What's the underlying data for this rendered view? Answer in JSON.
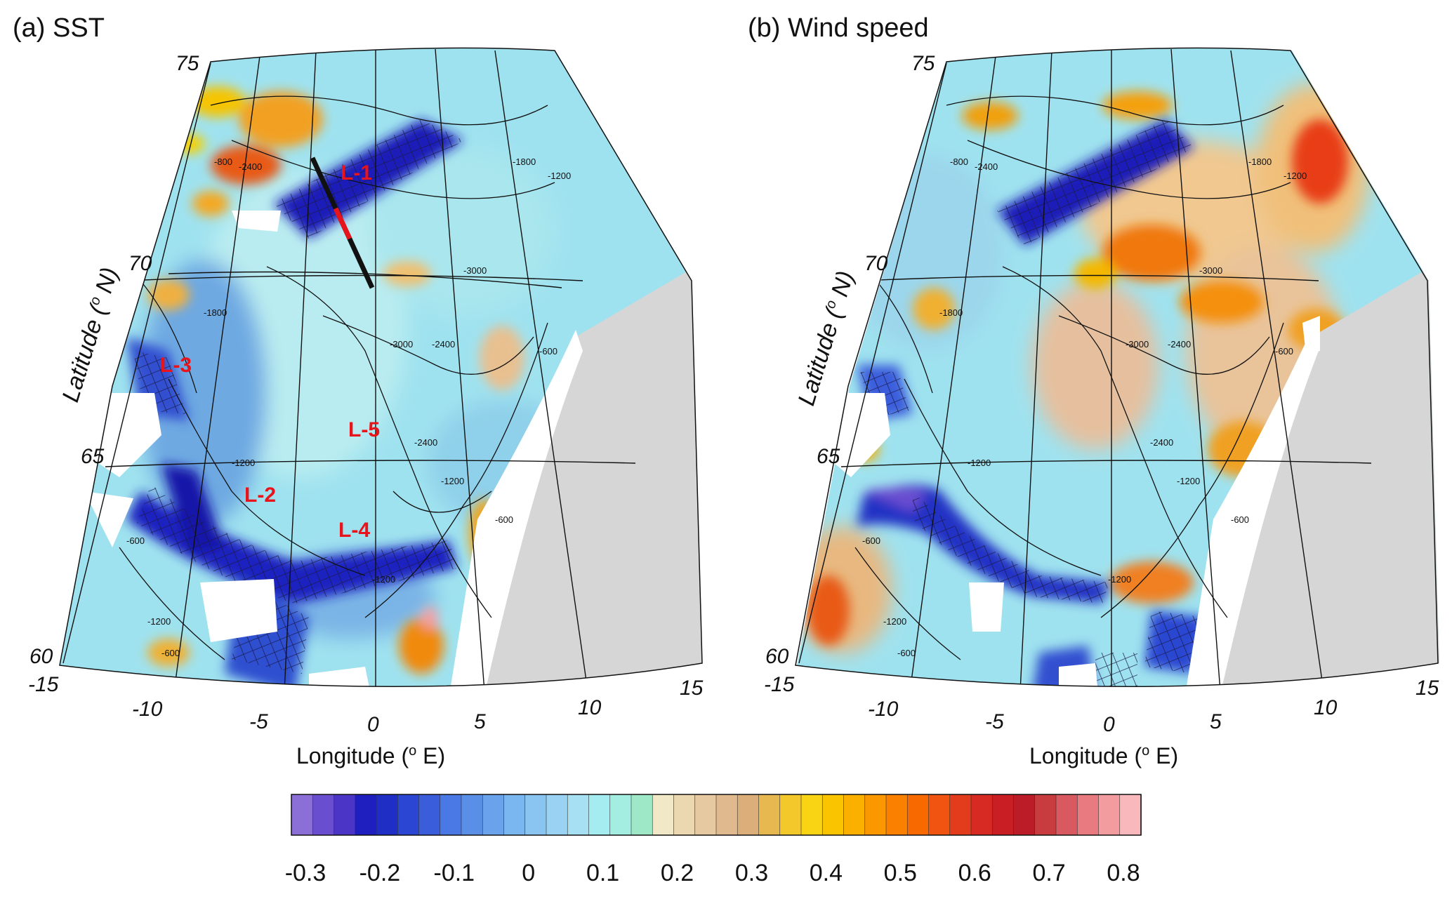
{
  "panels": [
    {
      "title": "(a) SST",
      "lat_ticks": [
        "75",
        "70",
        "65",
        "60"
      ],
      "lon_ticks": [
        "-15",
        "-10",
        "-5",
        "0",
        "5",
        "10",
        "15"
      ],
      "ylabel_main": "Latitude (",
      "ylabel_sup": "o",
      "ylabel_end": " N)",
      "xlabel_main": "Longitude (",
      "xlabel_sup": "o",
      "xlabel_end": " E)",
      "regions": [
        "L-1",
        "L-2",
        "L-3",
        "L-4",
        "L-5"
      ],
      "contour_values": [
        "-800",
        "-2400",
        "-3000",
        "-1800",
        "-1200",
        "-2400",
        "-3000",
        "-1800",
        "-600",
        "-1200",
        "-600",
        "-1200",
        "-2400",
        "-1200",
        "-600",
        "-600",
        "-1200"
      ]
    },
    {
      "title": "(b) Wind speed",
      "lat_ticks": [
        "75",
        "70",
        "65",
        "60"
      ],
      "lon_ticks": [
        "-15",
        "-10",
        "-5",
        "0",
        "5",
        "10",
        "15"
      ],
      "ylabel_main": "Latitude (",
      "ylabel_sup": "o",
      "ylabel_end": " N)",
      "xlabel_main": "Longitude (",
      "xlabel_sup": "o",
      "xlabel_end": " E)",
      "contour_values": [
        "-800",
        "-2400",
        "-3000",
        "-1800",
        "-1200",
        "-2400",
        "-3000",
        "-1800",
        "-600",
        "-1200",
        "-600",
        "-1200",
        "-2400",
        "-1200",
        "-600",
        "-600",
        "-1200"
      ]
    }
  ],
  "colorbar": {
    "labels": [
      "-0.3",
      "-0.2",
      "-0.1",
      "0",
      "0.1",
      "0.2",
      "0.3",
      "0.4",
      "0.5",
      "0.6",
      "0.7",
      "0.8"
    ],
    "colors": [
      "#8b6fd6",
      "#6a4ed0",
      "#4a35c6",
      "#1f1fbf",
      "#1f2fc6",
      "#2a46d2",
      "#3a5ddc",
      "#4a78e4",
      "#5a8fe8",
      "#6aa3ec",
      "#7ab6ef",
      "#8ac4f0",
      "#99d2f2",
      "#a7e0f2",
      "#a5ecf0",
      "#a3eee0",
      "#9ee8c8",
      "#f1e8c8",
      "#ecd8b0",
      "#e6c9a0",
      "#e0ba8e",
      "#dcae7a",
      "#e8b850",
      "#f2c82a",
      "#f8d414",
      "#fbc400",
      "#fbb000",
      "#fb9800",
      "#fb8000",
      "#f86a00",
      "#f05410",
      "#e33c1c",
      "#d62a22",
      "#c81e24",
      "#bb1c28",
      "#c83c40",
      "#d85a60",
      "#e87a80",
      "#f29ca0",
      "#f8b8bc"
    ]
  }
}
